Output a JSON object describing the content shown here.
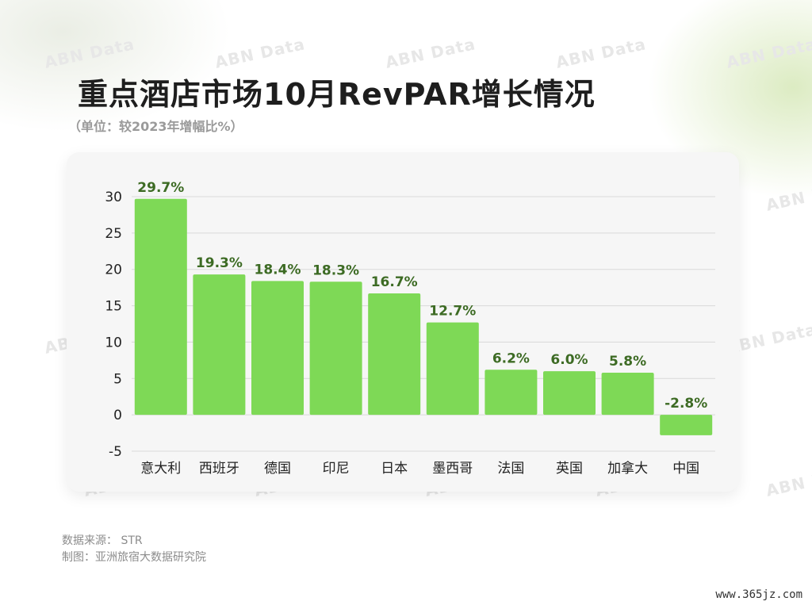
{
  "title": "重点酒店市场10月RevPAR增长情况",
  "subtitle": "（单位：较2023年增幅比%）",
  "watermark_text": "ABN Data",
  "footer": {
    "source": "数据来源： STR",
    "credit": "制图：亚洲旅宿大数据研究院"
  },
  "site_url": "www.365jz.com",
  "colors": {
    "bar": "#7ed956",
    "label": "#3d6b24",
    "grid": "#d9d9d9",
    "card": "#f6f6f6"
  },
  "chart_data": {
    "type": "bar",
    "categories": [
      "意大利",
      "西班牙",
      "德国",
      "印尼",
      "日本",
      "墨西哥",
      "法国",
      "英国",
      "加拿大",
      "中国"
    ],
    "values": [
      29.7,
      19.3,
      18.4,
      18.3,
      16.7,
      12.7,
      6.2,
      6.0,
      5.8,
      -2.8
    ],
    "data_labels": [
      "29.7%",
      "19.3%",
      "18.4%",
      "18.3%",
      "16.7%",
      "12.7%",
      "6.2%",
      "6.0%",
      "5.8%",
      "-2.8%"
    ],
    "yticks": [
      "-5",
      "0",
      "5",
      "10",
      "15",
      "20",
      "25",
      "30"
    ],
    "ylim": [
      -5,
      30
    ],
    "grid": true,
    "legend": "none"
  }
}
